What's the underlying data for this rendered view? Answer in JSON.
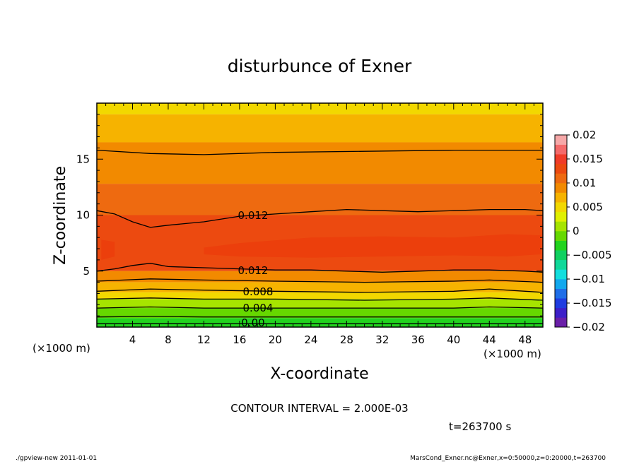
{
  "chart_data": {
    "type": "heatmap",
    "title": "disturbunce of Exner",
    "xlabel": "X-coordinate",
    "ylabel": "Z-coordinate",
    "x_unit": "(×1000 m)",
    "x_ticks": [
      "4",
      "8",
      "12",
      "16",
      "20",
      "24",
      "28",
      "32",
      "36",
      "40",
      "44",
      "48"
    ],
    "y_ticks": [
      "5",
      "10",
      "15"
    ],
    "xlim": [
      0,
      50
    ],
    "ylim": [
      0,
      20
    ],
    "contour_labels": [
      "0.012",
      "0.012",
      "0.008",
      "0.004",
      "0.00"
    ],
    "colorbar": {
      "labels": [
        "0.02",
        "0.015",
        "0.01",
        "0.005",
        "0",
        "−0.005",
        "−0.01",
        "−0.015",
        "−0.02"
      ],
      "range": [
        -0.02,
        0.02
      ],
      "band_colors": [
        "#6a1fa8",
        "#3d1fc8",
        "#1f3ce0",
        "#1f6ee8",
        "#12a8ee",
        "#14dede",
        "#10d89a",
        "#10d060",
        "#22d31e",
        "#66d800",
        "#a6e400",
        "#e0f000",
        "#f2d800",
        "#f6b300",
        "#f28a00",
        "#ee6a10",
        "#ec4a10",
        "#f03c28",
        "#f46a6a",
        "#f6a8a8"
      ]
    },
    "filled_bands": [
      {
        "z_range": [
          19.0,
          20.0
        ],
        "level_range": [
          0.006,
          0.008
        ],
        "color": "#f2d800"
      },
      {
        "z_range": [
          16.5,
          19.0
        ],
        "level_range": [
          0.008,
          0.01
        ],
        "color": "#f6b300"
      },
      {
        "z_range": [
          12.8,
          16.5
        ],
        "level_range": [
          0.01,
          0.012
        ],
        "color": "#f28a00"
      },
      {
        "z_range": [
          10.0,
          12.8
        ],
        "level_range": [
          0.012,
          0.014
        ],
        "color": "#ee6a10"
      },
      {
        "z_range": [
          5.0,
          10.0
        ],
        "level_range": [
          0.012,
          0.016
        ],
        "color": "#ec4a10"
      },
      {
        "z_range": [
          4.0,
          5.0
        ],
        "level_range": [
          0.01,
          0.012
        ],
        "color": "#f28a00"
      },
      {
        "z_range": [
          3.1,
          4.0
        ],
        "level_range": [
          0.008,
          0.01
        ],
        "color": "#f6b300"
      },
      {
        "z_range": [
          2.5,
          3.1
        ],
        "level_range": [
          0.006,
          0.008
        ],
        "color": "#f2d800"
      },
      {
        "z_range": [
          1.7,
          2.5
        ],
        "level_range": [
          0.004,
          0.006
        ],
        "color": "#a6e400"
      },
      {
        "z_range": [
          0.8,
          1.7
        ],
        "level_range": [
          0.002,
          0.004
        ],
        "color": "#66d800"
      },
      {
        "z_range": [
          0.0,
          0.8
        ],
        "level_range": [
          0.0,
          0.002
        ],
        "color": "#22d31e"
      }
    ],
    "contour_lines": [
      {
        "level": 0.01,
        "x": [
          0,
          6,
          12,
          20,
          30,
          40,
          50
        ],
        "z": [
          15.8,
          15.5,
          15.4,
          15.6,
          15.7,
          15.8,
          15.8
        ]
      },
      {
        "level": 0.012,
        "x": [
          0,
          2,
          4,
          6,
          8,
          12,
          16,
          20,
          24,
          28,
          32,
          36,
          40,
          44,
          48,
          50
        ],
        "z": [
          10.4,
          10.1,
          9.4,
          8.9,
          9.1,
          9.4,
          9.9,
          10.1,
          10.3,
          10.5,
          10.4,
          10.3,
          10.4,
          10.5,
          10.5,
          10.4
        ]
      },
      {
        "level": 0.012,
        "x": [
          0,
          2,
          4,
          6,
          8,
          12,
          16,
          20,
          24,
          28,
          32,
          36,
          40,
          44,
          48,
          50
        ],
        "z": [
          5.0,
          5.2,
          5.5,
          5.7,
          5.4,
          5.3,
          5.2,
          5.1,
          5.1,
          5.0,
          4.9,
          5.0,
          5.1,
          5.1,
          5.0,
          4.9
        ]
      },
      {
        "level": 0.01,
        "x": [
          0,
          6,
          12,
          20,
          30,
          40,
          44,
          50
        ],
        "z": [
          4.1,
          4.3,
          4.2,
          4.1,
          4.0,
          4.1,
          4.2,
          4.0
        ]
      },
      {
        "level": 0.008,
        "x": [
          0,
          6,
          12,
          20,
          30,
          40,
          44,
          50
        ],
        "z": [
          3.2,
          3.4,
          3.3,
          3.2,
          3.1,
          3.2,
          3.4,
          3.1
        ]
      },
      {
        "level": 0.006,
        "x": [
          0,
          6,
          12,
          20,
          30,
          40,
          44,
          50
        ],
        "z": [
          2.5,
          2.6,
          2.5,
          2.5,
          2.4,
          2.5,
          2.6,
          2.4
        ]
      },
      {
        "level": 0.004,
        "x": [
          0,
          6,
          12,
          20,
          30,
          40,
          44,
          50
        ],
        "z": [
          1.7,
          1.8,
          1.7,
          1.7,
          1.7,
          1.7,
          1.8,
          1.7
        ]
      },
      {
        "level": 0.002,
        "x": [
          0,
          6,
          12,
          20,
          30,
          40,
          50
        ],
        "z": [
          0.9,
          0.95,
          0.9,
          0.9,
          0.9,
          0.9,
          0.9
        ]
      },
      {
        "level": 0.0,
        "x": [
          0,
          10,
          20,
          30,
          40,
          50
        ],
        "z": [
          0.3,
          0.32,
          0.3,
          0.3,
          0.3,
          0.3
        ]
      }
    ],
    "annotations": {
      "contour_interval": "CONTOUR INTERVAL = 2.000E-03",
      "time": "t=263700 s"
    }
  },
  "footer": {
    "left": "./gpview-new   2011-01-01",
    "right": "MarsCond_Exner.nc@Exner,x=0:50000,z=0:20000,t=263700"
  }
}
